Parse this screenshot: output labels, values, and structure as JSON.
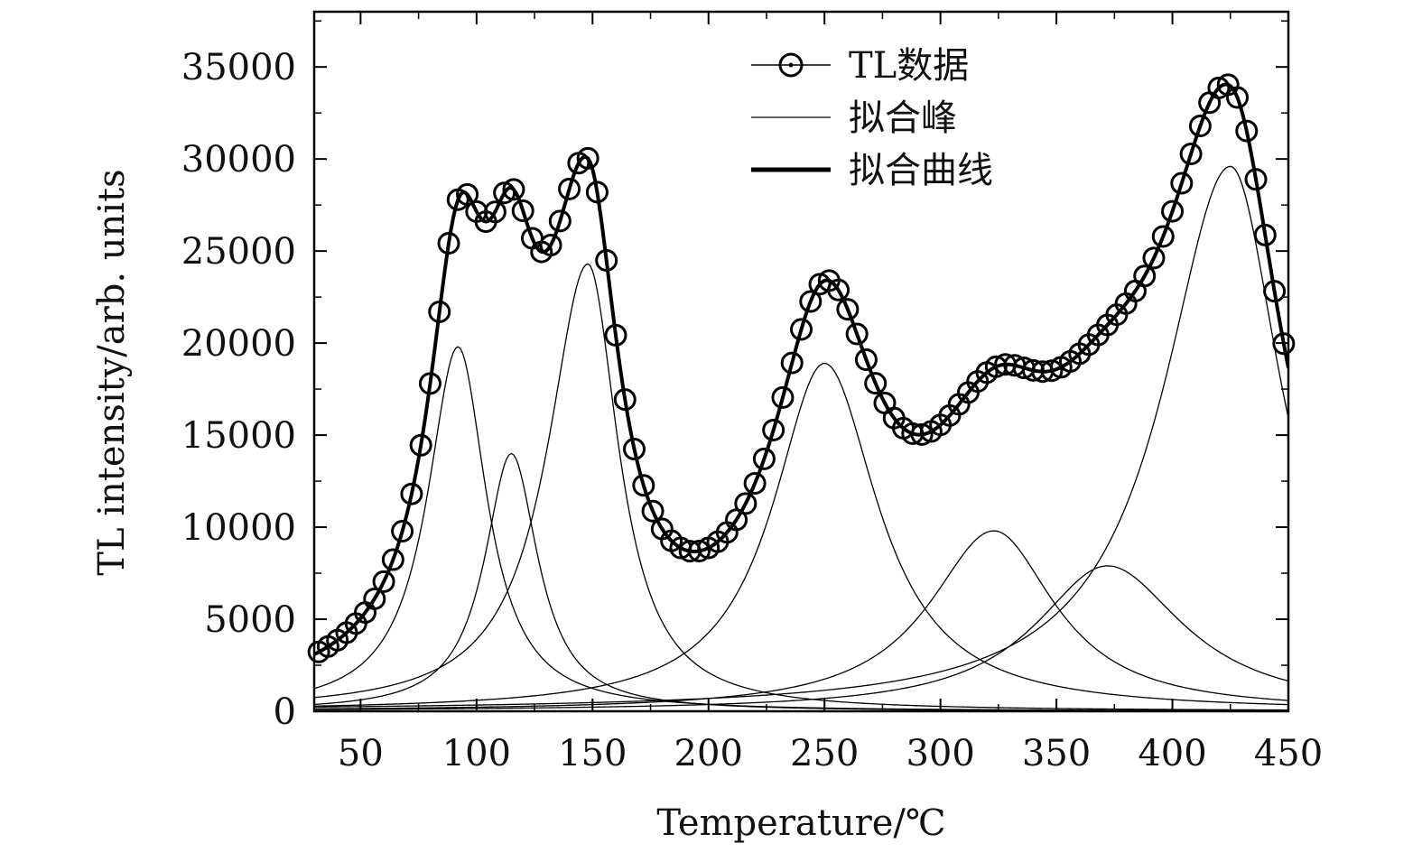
{
  "chart_data": {
    "type": "line",
    "title": "",
    "xlabel": "Temperature/℃",
    "ylabel": "TL intensity/arb. units",
    "xlim": [
      30,
      450
    ],
    "ylim": [
      0,
      38000
    ],
    "xticks": [
      50,
      100,
      150,
      200,
      250,
      300,
      350,
      400,
      450
    ],
    "yticks": [
      0,
      5000,
      10000,
      15000,
      20000,
      25000,
      30000,
      35000
    ],
    "legend": {
      "placement": "top-center",
      "entries": [
        {
          "label": "TL数据",
          "style": "line-with-circle-markers"
        },
        {
          "label": "拟合峰",
          "style": "thin-line"
        },
        {
          "label": "拟合曲线",
          "style": "thick-line"
        }
      ]
    },
    "fitted_peaks": [
      {
        "center": 92,
        "amplitude": 19800,
        "width_left": 16,
        "width_right": 15
      },
      {
        "center": 115,
        "amplitude": 14000,
        "width_left": 14,
        "width_right": 14
      },
      {
        "center": 148,
        "amplitude": 24300,
        "width_left": 21,
        "width_right": 16
      },
      {
        "center": 250,
        "amplitude": 18900,
        "width_left": 27,
        "width_right": 28
      },
      {
        "center": 323,
        "amplitude": 9800,
        "width_left": 34,
        "width_right": 32
      },
      {
        "center": 372,
        "amplitude": 7900,
        "width_left": 38,
        "width_right": 40
      },
      {
        "center": 425,
        "amplitude": 29600,
        "width_left": 35,
        "width_right": 27
      }
    ],
    "tl_data_x": [
      32,
      36,
      40,
      44,
      48,
      52,
      56,
      60,
      64,
      68,
      72,
      76,
      80,
      84,
      88,
      92,
      96,
      100,
      104,
      108,
      112,
      116,
      120,
      124,
      128,
      132,
      136,
      140,
      144,
      148,
      152,
      156,
      160,
      164,
      168,
      172,
      176,
      180,
      184,
      188,
      192,
      196,
      200,
      204,
      208,
      212,
      216,
      220,
      224,
      228,
      232,
      236,
      240,
      244,
      248,
      252,
      256,
      260,
      264,
      268,
      272,
      276,
      280,
      284,
      288,
      292,
      296,
      300,
      304,
      308,
      312,
      316,
      320,
      324,
      328,
      332,
      336,
      340,
      344,
      348,
      352,
      356,
      360,
      364,
      368,
      372,
      376,
      380,
      384,
      388,
      392,
      396,
      400,
      404,
      408,
      412,
      416,
      420,
      424,
      428,
      432,
      436,
      440,
      444,
      448
    ]
  }
}
